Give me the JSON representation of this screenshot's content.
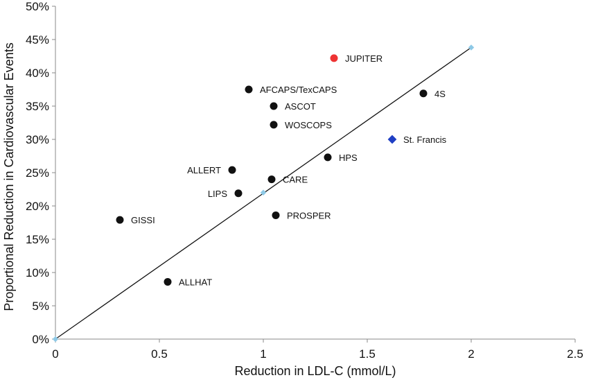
{
  "chart_data": {
    "type": "scatter",
    "xlabel": "Reduction in LDL-C (mmol/L)",
    "ylabel": "Proportional Reduction in Cardiovascular Events",
    "xlim": [
      0,
      2.5
    ],
    "ylim": [
      0,
      50
    ],
    "x_ticks": [
      {
        "value": 0,
        "label": "0"
      },
      {
        "value": 0.5,
        "label": "0.5"
      },
      {
        "value": 1,
        "label": "1"
      },
      {
        "value": 1.5,
        "label": "1.5"
      },
      {
        "value": 2,
        "label": "2"
      },
      {
        "value": 2.5,
        "label": "2.5"
      }
    ],
    "y_ticks": [
      {
        "value": 0,
        "label": "0%"
      },
      {
        "value": 5,
        "label": "5%"
      },
      {
        "value": 10,
        "label": "10%"
      },
      {
        "value": 15,
        "label": "15%"
      },
      {
        "value": 20,
        "label": "20%"
      },
      {
        "value": 25,
        "label": "25%"
      },
      {
        "value": 30,
        "label": "30%"
      },
      {
        "value": 35,
        "label": "35%"
      },
      {
        "value": 40,
        "label": "40%"
      },
      {
        "value": 45,
        "label": "45%"
      },
      {
        "value": 50,
        "label": "50%"
      }
    ],
    "trend_line": {
      "points": [
        {
          "x": 0,
          "y": 0
        },
        {
          "x": 1,
          "y": 22
        },
        {
          "x": 2,
          "y": 43.8
        }
      ],
      "color": "#111111",
      "marker_color": "#8ec9e6"
    },
    "points": [
      {
        "name": "JUPITER",
        "x": 1.34,
        "y": 42.2,
        "marker": "circle",
        "color": "#ee3333",
        "label_side": "right"
      },
      {
        "name": "4S",
        "x": 1.77,
        "y": 36.9,
        "marker": "circle",
        "color": "#111111",
        "label_side": "right"
      },
      {
        "name": "AFCAPS/TexCAPS",
        "x": 0.93,
        "y": 37.5,
        "marker": "circle",
        "color": "#111111",
        "label_side": "right"
      },
      {
        "name": "ASCOT",
        "x": 1.05,
        "y": 35.0,
        "marker": "circle",
        "color": "#111111",
        "label_side": "right"
      },
      {
        "name": "WOSCOPS",
        "x": 1.05,
        "y": 32.2,
        "marker": "circle",
        "color": "#111111",
        "label_side": "right"
      },
      {
        "name": "St. Francis",
        "x": 1.62,
        "y": 30.0,
        "marker": "diamond",
        "color": "#1f3fc4",
        "label_side": "right"
      },
      {
        "name": "HPS",
        "x": 1.31,
        "y": 27.3,
        "marker": "circle",
        "color": "#111111",
        "label_side": "right"
      },
      {
        "name": "ALLERT",
        "x": 0.85,
        "y": 25.4,
        "marker": "circle",
        "color": "#111111",
        "label_side": "left"
      },
      {
        "name": "CARE",
        "x": 1.04,
        "y": 24.0,
        "marker": "circle",
        "color": "#111111",
        "label_side": "right"
      },
      {
        "name": "LIPS",
        "x": 0.88,
        "y": 21.9,
        "marker": "circle",
        "color": "#111111",
        "label_side": "left"
      },
      {
        "name": "GISSI",
        "x": 0.31,
        "y": 17.9,
        "marker": "circle",
        "color": "#111111",
        "label_side": "right"
      },
      {
        "name": "PROSPER",
        "x": 1.06,
        "y": 18.6,
        "marker": "circle",
        "color": "#111111",
        "label_side": "right"
      },
      {
        "name": "ALLHAT",
        "x": 0.54,
        "y": 8.6,
        "marker": "circle",
        "color": "#111111",
        "label_side": "right"
      }
    ]
  }
}
